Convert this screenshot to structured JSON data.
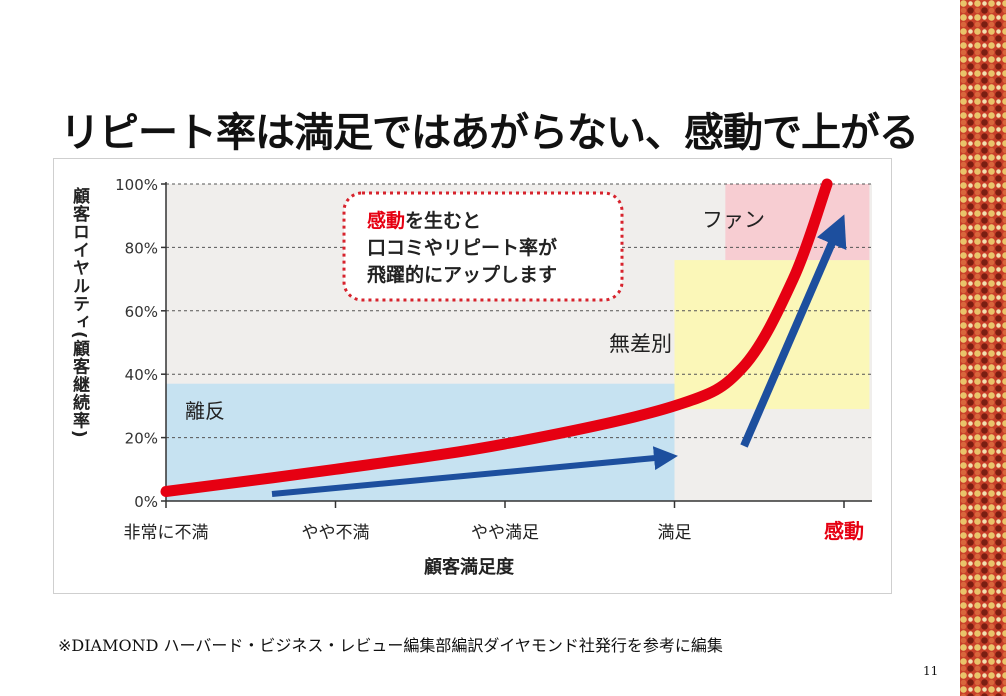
{
  "slide": {
    "title": "リピート率は満足ではあがらない、感動で上がる",
    "footnote": "※DIAMOND ハーバード・ビジネス・レビュー編集部編訳ダイヤモンド社発行を参考に編集",
    "page_number": "11"
  },
  "chart_data": {
    "type": "line",
    "title": "",
    "ylabel": "顧客ロイヤルティ(顧客継続率)",
    "xlabel": "顧客満足度",
    "ylim": [
      0,
      100
    ],
    "y_ticks": [
      "0%",
      "20%",
      "40%",
      "60%",
      "80%",
      "100%"
    ],
    "categories": [
      "非常に不満",
      "やや不満",
      "やや満足",
      "満足",
      "感動"
    ],
    "series": [
      {
        "color": "#e60012",
        "points": [
          {
            "x": 0.0,
            "y": 3
          },
          {
            "x": 1.0,
            "y": 10
          },
          {
            "x": 2.0,
            "y": 18
          },
          {
            "x": 3.0,
            "y": 30
          },
          {
            "x": 3.4,
            "y": 42
          },
          {
            "x": 3.7,
            "y": 70
          },
          {
            "x": 3.9,
            "y": 100
          }
        ]
      }
    ],
    "regions": [
      {
        "label": "離反",
        "x_range": [
          0,
          3
        ],
        "y_range": [
          0,
          37
        ],
        "color": "#c6e2f1"
      },
      {
        "label": "無差別",
        "x_range": [
          3,
          4.15
        ],
        "y_range": [
          29,
          76
        ],
        "color": "#fbf7b8"
      },
      {
        "label": "ファン",
        "x_range": [
          3.3,
          4.15
        ],
        "y_range": [
          76,
          100
        ],
        "color": "#f7cdd2"
      }
    ],
    "callout": {
      "highlight": "感動",
      "line1_rest": "を生むと",
      "line2": "口コミやリピート率が",
      "line3": "飛躍的にアップします"
    },
    "grid": true,
    "colors": {
      "curve": "#e60012",
      "arrow": "#1d4f9e",
      "highlight_text": "#e60012",
      "callout_border": "#d7232d"
    }
  }
}
